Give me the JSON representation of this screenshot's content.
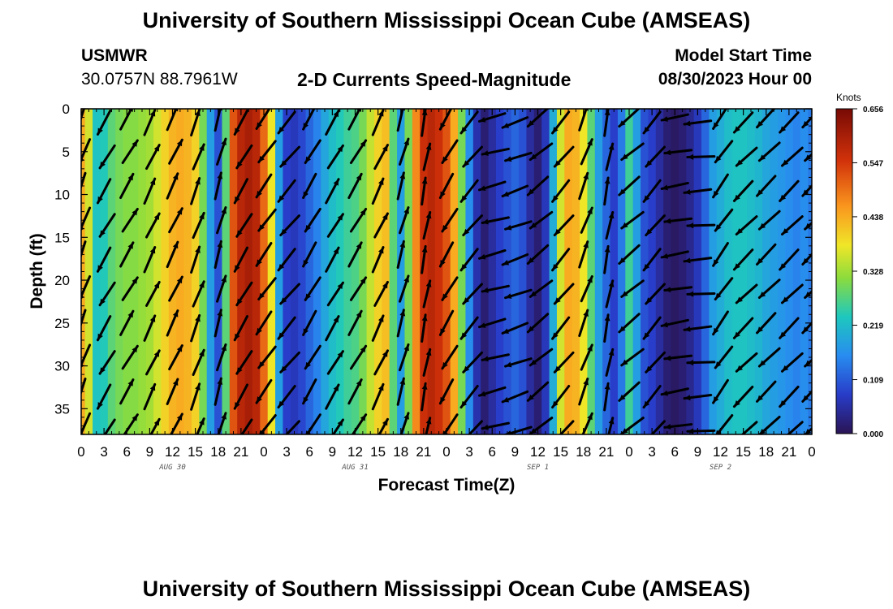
{
  "header": {
    "title": "University of Southern Mississippi Ocean Cube (AMSEAS)",
    "station": "USMWR",
    "coords": "30.0757N  88.7961W",
    "subtitle": "2-D Currents Speed-Magnitude",
    "start_label": "Model Start Time",
    "start_time": "08/30/2023 Hour 00"
  },
  "footer": {
    "title": "University of Southern Mississippi Ocean Cube (AMSEAS)"
  },
  "chart_data": {
    "type": "heatmap",
    "title": "2-D Currents Speed-Magnitude",
    "xlabel": "Forecast Time(Z)",
    "ylabel": "Depth (ft)",
    "x_unit": "hours since 08/30/2023 00Z",
    "xlim": [
      0,
      96
    ],
    "ylim": [
      0,
      38
    ],
    "x_ticks": [
      0,
      3,
      6,
      9,
      12,
      15,
      18,
      21,
      24,
      27,
      30,
      33,
      36,
      39,
      42,
      45,
      48,
      51,
      54,
      57,
      60,
      63,
      66,
      69,
      72,
      75,
      78,
      81,
      84,
      87,
      90,
      93,
      96
    ],
    "x_tick_labels": [
      "0",
      "3",
      "6",
      "9",
      "12",
      "15",
      "18",
      "21",
      "0",
      "3",
      "6",
      "9",
      "12",
      "15",
      "18",
      "21",
      "0",
      "3",
      "6",
      "9",
      "12",
      "15",
      "18",
      "21",
      "0",
      "3",
      "6",
      "9",
      "12",
      "15",
      "18",
      "21",
      "0"
    ],
    "y_ticks": [
      0,
      5,
      10,
      15,
      20,
      25,
      30,
      35
    ],
    "y_tick_labels": [
      "0",
      "5",
      "10",
      "15",
      "20",
      "25",
      "30",
      "35"
    ],
    "date_labels": [
      {
        "x": 12,
        "text": "AUG 30"
      },
      {
        "x": 36,
        "text": "AUG 31"
      },
      {
        "x": 60,
        "text": "SEP 1"
      },
      {
        "x": 84,
        "text": "SEP 2"
      }
    ],
    "colorbar": {
      "unit": "Knots",
      "min": 0.0,
      "max": 0.656,
      "ticks": [
        0.0,
        0.109,
        0.219,
        0.328,
        0.438,
        0.547,
        0.656
      ],
      "tick_labels": [
        "0.000",
        "0.109",
        "0.219",
        "0.328",
        "0.438",
        "0.547",
        "0.656"
      ]
    },
    "speed_profile": {
      "hours": [
        0,
        1,
        2,
        3,
        4,
        5,
        6,
        7,
        8,
        9,
        10,
        11,
        12,
        13,
        14,
        15,
        16,
        17,
        18,
        19,
        20,
        21,
        22,
        23,
        24,
        25,
        26,
        27,
        28,
        29,
        30,
        31,
        32,
        33,
        34,
        35,
        36,
        37,
        38,
        39,
        40,
        41,
        42,
        43,
        44,
        45,
        46,
        47,
        48,
        49,
        50,
        51,
        52,
        53,
        54,
        55,
        56,
        57,
        58,
        59,
        60,
        61,
        62,
        63,
        64,
        65,
        66,
        67,
        68,
        69,
        70,
        71,
        72,
        73,
        74,
        75,
        76,
        77,
        78,
        79,
        80,
        81,
        82,
        83,
        84,
        85,
        86,
        87,
        88,
        89,
        90,
        91,
        92,
        93,
        94,
        95,
        96
      ],
      "speed": [
        0.44,
        0.36,
        0.23,
        0.24,
        0.28,
        0.3,
        0.31,
        0.31,
        0.32,
        0.33,
        0.36,
        0.4,
        0.43,
        0.44,
        0.43,
        0.4,
        0.3,
        0.18,
        0.1,
        0.28,
        0.52,
        0.58,
        0.6,
        0.58,
        0.5,
        0.38,
        0.18,
        0.08,
        0.07,
        0.09,
        0.12,
        0.15,
        0.19,
        0.22,
        0.24,
        0.26,
        0.27,
        0.3,
        0.35,
        0.4,
        0.42,
        0.28,
        0.18,
        0.3,
        0.47,
        0.56,
        0.58,
        0.56,
        0.52,
        0.44,
        0.3,
        0.16,
        0.06,
        0.02,
        0.05,
        0.08,
        0.1,
        0.12,
        0.1,
        0.05,
        0.02,
        0.07,
        0.2,
        0.36,
        0.44,
        0.43,
        0.38,
        0.28,
        0.18,
        0.12,
        0.08,
        0.14,
        0.26,
        0.18,
        0.1,
        0.08,
        0.05,
        0.02,
        0.01,
        0.02,
        0.04,
        0.07,
        0.12,
        0.18,
        0.2,
        0.22,
        0.23,
        0.23,
        0.22,
        0.21,
        0.19,
        0.18,
        0.17,
        0.16,
        0.15,
        0.16,
        0.14
      ]
    },
    "vectors": {
      "hours": [
        0,
        3,
        6,
        9,
        12,
        15,
        18,
        21,
        24,
        27,
        30,
        33,
        36,
        39,
        42,
        45,
        48,
        51,
        54,
        57,
        60,
        63,
        66,
        69,
        72,
        75,
        78,
        81,
        84,
        87,
        90,
        93,
        96
      ],
      "direction_deg": [
        110,
        120,
        -60,
        -65,
        -65,
        -70,
        -75,
        120,
        125,
        130,
        120,
        -60,
        -60,
        -65,
        -75,
        -80,
        120,
        130,
        165,
        160,
        140,
        130,
        -70,
        -80,
        140,
        130,
        170,
        175,
        125,
        135,
        135,
        135,
        135
      ]
    }
  }
}
